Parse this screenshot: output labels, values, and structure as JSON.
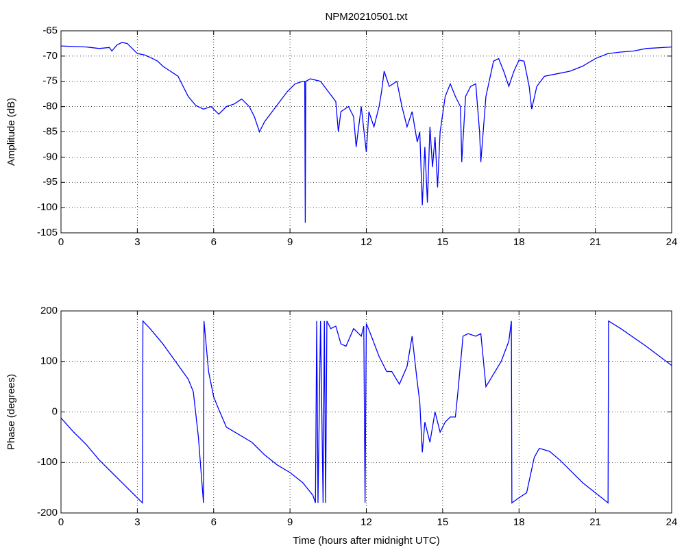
{
  "chart_data": [
    {
      "type": "line",
      "title": "NPM20210501.txt",
      "y_label": "Amplitude (dB)",
      "xlim": [
        0,
        24
      ],
      "xticks": [
        0,
        3,
        6,
        9,
        12,
        15,
        18,
        21,
        24
      ],
      "ylim": [
        -105,
        -65
      ],
      "yticks": [
        -105,
        -100,
        -95,
        -90,
        -85,
        -80,
        -75,
        -70,
        -65
      ],
      "grid": true,
      "x": [
        0,
        1,
        1.5,
        1.9,
        2.0,
        2.2,
        2.4,
        2.6,
        2.8,
        3.0,
        3.3,
        3.6,
        3.8,
        4.0,
        4.3,
        4.6,
        4.8,
        5.0,
        5.3,
        5.6,
        5.9,
        6.2,
        6.5,
        6.8,
        7.1,
        7.4,
        7.6,
        7.8,
        8.0,
        8.3,
        8.6,
        8.9,
        9.2,
        9.5,
        9.58,
        9.6,
        9.62,
        9.8,
        10.2,
        10.5,
        10.8,
        10.9,
        11.0,
        11.3,
        11.5,
        11.6,
        11.8,
        12.0,
        12.1,
        12.3,
        12.5,
        12.6,
        12.7,
        12.9,
        13.2,
        13.4,
        13.6,
        13.8,
        14.0,
        14.1,
        14.2,
        14.3,
        14.4,
        14.5,
        14.6,
        14.7,
        14.8,
        14.9,
        15.1,
        15.3,
        15.5,
        15.7,
        15.75,
        15.9,
        16.1,
        16.3,
        16.45,
        16.5,
        16.7,
        17.0,
        17.2,
        17.4,
        17.6,
        17.8,
        18.0,
        18.2,
        18.4,
        18.5,
        18.7,
        19.0,
        19.5,
        20.0,
        20.5,
        21.0,
        21.5,
        22.0,
        22.5,
        23.0,
        24.0
      ],
      "series": [
        {
          "color": "#0000ff",
          "values": [
            -68,
            -68.2,
            -68.5,
            -68.3,
            -69,
            -67.8,
            -67.3,
            -67.5,
            -68.5,
            -69.5,
            -69.8,
            -70.5,
            -71,
            -72,
            -73,
            -74,
            -76,
            -78,
            -79.8,
            -80.5,
            -80,
            -81.5,
            -80,
            -79.5,
            -78.5,
            -80,
            -82,
            -85,
            -83,
            -81,
            -79,
            -77,
            -75.5,
            -75,
            -75,
            -103,
            -75,
            -74.5,
            -75,
            -77,
            -79,
            -85,
            -81,
            -80,
            -82,
            -88,
            -80,
            -89,
            -81,
            -84,
            -80,
            -77,
            -73,
            -76,
            -75,
            -80,
            -84,
            -81,
            -87,
            -85,
            -99.5,
            -88,
            -99,
            -84,
            -92,
            -86,
            -96,
            -85,
            -78,
            -75.5,
            -78,
            -80,
            -91,
            -78,
            -76,
            -75.5,
            -85,
            -91,
            -78,
            -71,
            -70.5,
            -73,
            -76,
            -73,
            -70.8,
            -71,
            -76,
            -80.5,
            -76,
            -74,
            -73.5,
            -73,
            -72,
            -70.5,
            -69.5,
            -69.2,
            -69,
            -68.5,
            -68.2
          ]
        }
      ]
    },
    {
      "type": "line",
      "x_label": "Time (hours after midnight UTC)",
      "y_label": "Phase (degrees)",
      "xlim": [
        0,
        24
      ],
      "xticks": [
        0,
        3,
        6,
        9,
        12,
        15,
        18,
        21,
        24
      ],
      "ylim": [
        -200,
        200
      ],
      "yticks": [
        -200,
        -100,
        0,
        100,
        200
      ],
      "grid": true,
      "x": [
        0,
        0.5,
        1,
        1.5,
        2.0,
        2.5,
        3.0,
        3.2,
        3.22,
        3.5,
        4.0,
        4.5,
        5.0,
        5.2,
        5.4,
        5.6,
        5.62,
        5.8,
        6.0,
        6.2,
        6.5,
        7.0,
        7.5,
        8.0,
        8.5,
        9.0,
        9.5,
        9.9,
        10.0,
        10.05,
        10.1,
        10.2,
        10.3,
        10.35,
        10.4,
        10.45,
        10.6,
        10.8,
        11.0,
        11.2,
        11.5,
        11.8,
        11.9,
        11.95,
        12.0,
        12.2,
        12.5,
        12.8,
        13.0,
        13.3,
        13.6,
        13.8,
        14.0,
        14.1,
        14.2,
        14.3,
        14.5,
        14.7,
        14.9,
        15.1,
        15.3,
        15.5,
        15.6,
        15.8,
        16.0,
        16.3,
        16.5,
        16.7,
        17.0,
        17.3,
        17.6,
        17.7,
        17.72,
        18.0,
        18.3,
        18.6,
        18.8,
        19.2,
        19.6,
        20.0,
        20.5,
        21.0,
        21.5,
        21.52,
        22.0,
        23.0,
        24.0
      ],
      "series": [
        {
          "color": "#0000ff",
          "values": [
            -12,
            -40,
            -65,
            -95,
            -120,
            -145,
            -170,
            -180,
            180,
            165,
            135,
            100,
            65,
            40,
            -50,
            -180,
            180,
            80,
            30,
            5,
            -30,
            -45,
            -60,
            -85,
            -105,
            -120,
            -140,
            -165,
            -180,
            180,
            -180,
            180,
            -180,
            180,
            -180,
            180,
            165,
            170,
            135,
            130,
            165,
            150,
            170,
            -180,
            175,
            150,
            110,
            80,
            80,
            55,
            90,
            150,
            60,
            20,
            -80,
            -20,
            -60,
            0,
            -40,
            -20,
            -10,
            -10,
            40,
            150,
            155,
            150,
            155,
            50,
            75,
            100,
            140,
            180,
            -180,
            -170,
            -160,
            -90,
            -72,
            -78,
            -95,
            -115,
            -140,
            -160,
            -180,
            180,
            165,
            130,
            92
          ]
        }
      ]
    }
  ]
}
